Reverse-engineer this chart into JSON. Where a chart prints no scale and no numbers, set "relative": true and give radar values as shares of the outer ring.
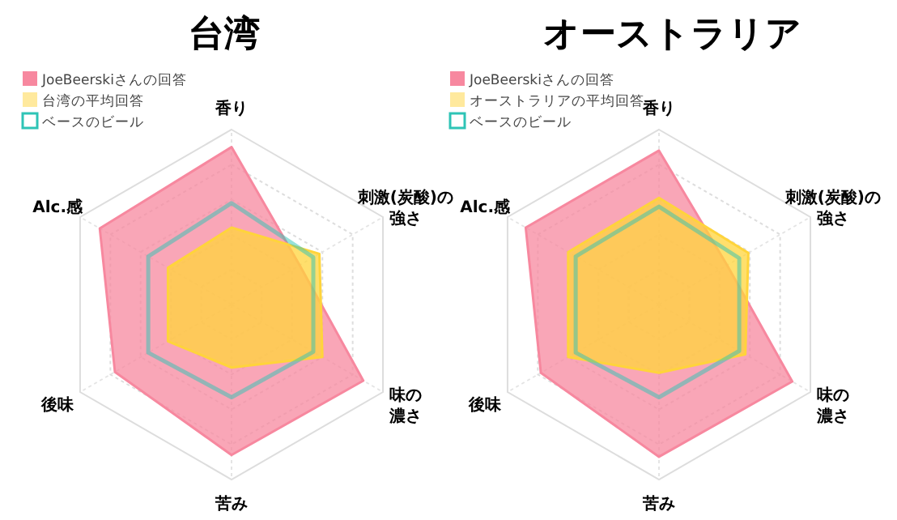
{
  "chart_data": [
    {
      "type": "radar",
      "title": "台湾",
      "relative": true,
      "legend": "top left",
      "grid": true,
      "categories": [
        "香り",
        "刺激(炭酸)の強さ",
        "味の濃さ",
        "苦み",
        "後味",
        "Alc.感"
      ],
      "series": [
        {
          "name": "JoeBeerskiさんの回答",
          "color": "#f7889f",
          "values": [
            0.9,
            0.45,
            0.87,
            0.86,
            0.77,
            0.87
          ]
        },
        {
          "name": "台湾の平均回答",
          "color": "#ffd43b",
          "values": [
            0.44,
            0.58,
            0.6,
            0.36,
            0.42,
            0.42
          ]
        },
        {
          "name": "ベースのビール",
          "line_style": "solid",
          "color": "#2ec4b6",
          "values": [
            0.58,
            0.54,
            0.54,
            0.53,
            0.55,
            0.55
          ]
        }
      ]
    },
    {
      "type": "radar",
      "title": "オーストラリア",
      "relative": true,
      "legend": "top left",
      "grid": true,
      "categories": [
        "香り",
        "刺激(炭酸)の強さ",
        "味の濃さ",
        "苦み",
        "後味",
        "Alc.感"
      ],
      "series": [
        {
          "name": "JoeBeerskiさんの回答",
          "color": "#f7889f",
          "values": [
            0.88,
            0.45,
            0.88,
            0.87,
            0.78,
            0.88
          ]
        },
        {
          "name": "オーストラリアの平均回答",
          "color": "#ffd43b",
          "values": [
            0.61,
            0.59,
            0.57,
            0.39,
            0.6,
            0.6
          ]
        },
        {
          "name": "ベースのビール",
          "line_style": "solid",
          "color": "#2ec4b6",
          "values": [
            0.56,
            0.53,
            0.53,
            0.53,
            0.55,
            0.55
          ]
        }
      ]
    }
  ]
}
